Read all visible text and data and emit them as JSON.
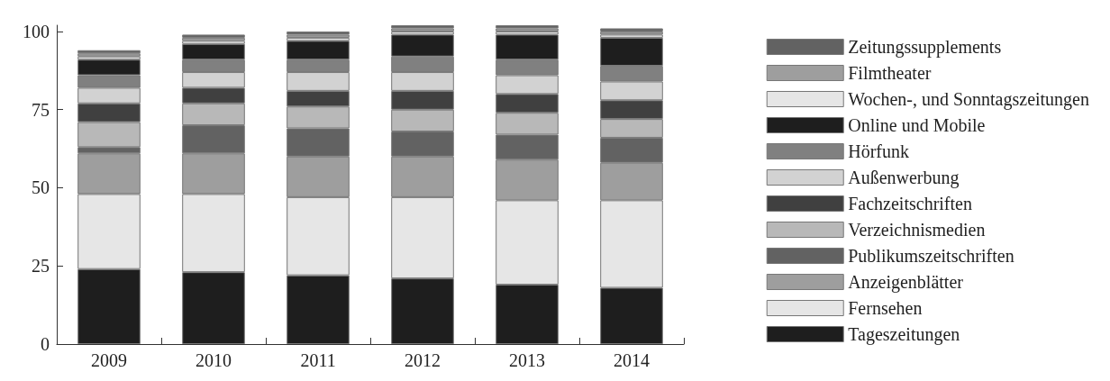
{
  "chart_data": {
    "type": "bar",
    "stacked": true,
    "categories": [
      "2009",
      "2010",
      "2011",
      "2012",
      "2013",
      "2014"
    ],
    "ylim": [
      0,
      102
    ],
    "yticks": [
      0,
      25,
      50,
      75,
      100
    ],
    "grid": false,
    "legend": "right",
    "series": [
      {
        "name": "Tageszeitungen",
        "color": "#1e1e1e",
        "values": [
          24,
          23,
          22,
          21,
          19,
          18
        ]
      },
      {
        "name": "Fernsehen",
        "color": "#e6e6e6",
        "values": [
          24,
          25,
          25,
          26,
          27,
          28
        ]
      },
      {
        "name": "Anzeigenblätter",
        "color": "#9e9e9e",
        "values": [
          13,
          13,
          13,
          13,
          13,
          12
        ]
      },
      {
        "name": "Publikumszeitschriften",
        "color": "#626262",
        "values": [
          2,
          9,
          9,
          8,
          8,
          8
        ]
      },
      {
        "name": "Verzeichnismedien",
        "color": "#b8b8b8",
        "values": [
          8,
          7,
          7,
          7,
          7,
          6
        ]
      },
      {
        "name": "Fachzeitschriften",
        "color": "#404040",
        "values": [
          6,
          5,
          5,
          6,
          6,
          6
        ]
      },
      {
        "name": "Außenwerbung",
        "color": "#d2d2d2",
        "values": [
          5,
          5,
          6,
          6,
          6,
          6
        ]
      },
      {
        "name": "Hörfunk",
        "color": "#808080",
        "values": [
          4,
          4,
          4,
          5,
          5,
          5
        ]
      },
      {
        "name": "Online und Mobile",
        "color": "#1e1e1e",
        "values": [
          5,
          5,
          6,
          7,
          8,
          9
        ]
      },
      {
        "name": "Wochen-, und Sonntagszeitungen",
        "color": "#e6e6e6",
        "values": [
          1,
          1,
          1,
          1,
          1,
          1
        ]
      },
      {
        "name": "Filmtheater",
        "color": "#9e9e9e",
        "values": [
          1,
          1,
          1,
          1,
          1,
          1
        ]
      },
      {
        "name": "Zeitungssupplements",
        "color": "#626262",
        "values": [
          1,
          1,
          1,
          1,
          1,
          1
        ]
      }
    ]
  }
}
